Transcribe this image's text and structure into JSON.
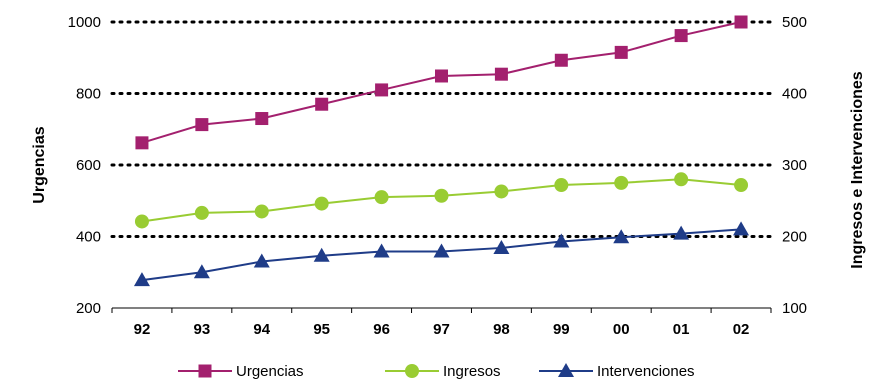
{
  "chart_data": {
    "type": "line",
    "categories": [
      "92",
      "93",
      "94",
      "95",
      "96",
      "97",
      "98",
      "99",
      "00",
      "01",
      "02"
    ],
    "left_axis": {
      "label": "Urgencias",
      "ticks": [
        "200",
        "400",
        "600",
        "800",
        "1000"
      ],
      "ylim": [
        200,
        1000
      ]
    },
    "right_axis": {
      "label": "Ingresos e Intervenciones",
      "ticks": [
        "100",
        "200",
        "300",
        "400",
        "500"
      ],
      "ylim": [
        100,
        500
      ]
    },
    "grid": "dotted horizontal",
    "legend_position": "bottom",
    "series": [
      {
        "name": "Urgencias",
        "axis": "left",
        "marker": "square",
        "color": "#a3206e",
        "values": [
          662,
          713,
          730,
          770,
          810,
          849,
          854,
          893,
          915,
          962,
          1000
        ]
      },
      {
        "name": "Ingresos",
        "axis": "right",
        "marker": "circle",
        "color": "#99cc33",
        "values": [
          221,
          233,
          235,
          246,
          255,
          257,
          263,
          272,
          275,
          280,
          272
        ]
      },
      {
        "name": "Intervenciones",
        "axis": "right",
        "marker": "triangle",
        "color": "#1f3c88",
        "values": [
          139,
          150,
          165,
          173,
          179,
          179,
          184,
          193,
          199,
          204,
          210
        ]
      }
    ]
  }
}
